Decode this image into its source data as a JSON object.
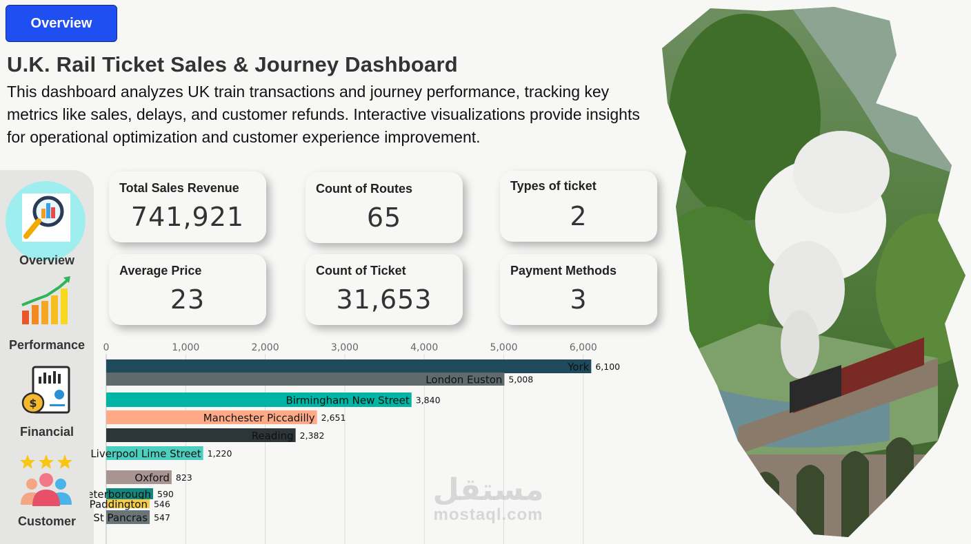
{
  "header": {
    "button_label": "Overview",
    "title": "U.K. Rail Ticket Sales & Journey Dashboard",
    "description": "This dashboard analyzes UK train transactions and journey performance, tracking key metrics like sales, delays, and customer refunds. Interactive visualizations provide insights for operational optimization and customer experience improvement."
  },
  "sidebar": {
    "items": [
      {
        "label": "Overview",
        "icon": "magnifier-chart-icon"
      },
      {
        "label": "Performance",
        "icon": "growth-chart-icon"
      },
      {
        "label": "Financial",
        "icon": "money-report-icon"
      },
      {
        "label": "Customer",
        "icon": "customer-rating-icon"
      }
    ]
  },
  "kpis": [
    {
      "label": "Total Sales Revenue",
      "value": "741,921"
    },
    {
      "label": "Count of Routes",
      "value": "65"
    },
    {
      "label": "Types of ticket",
      "value": "2"
    },
    {
      "label": "Average Price",
      "value": "23"
    },
    {
      "label": "Count of Ticket",
      "value": "31,653"
    },
    {
      "label": "Payment Methods",
      "value": "3"
    }
  ],
  "chart_data": {
    "type": "bar",
    "orientation": "horizontal",
    "xlim": [
      0,
      6300
    ],
    "xticks": [
      "0",
      "1,000",
      "2,000",
      "3,000",
      "4,000",
      "5,000",
      "6,000"
    ],
    "grid": true,
    "bars": [
      {
        "label": "York",
        "value": 6100,
        "value_label": "6,100",
        "color": "#1f4a5c"
      },
      {
        "label": "London Euston",
        "value": 5008,
        "value_label": "5,008",
        "color": "#5e6a6c"
      },
      {
        "label": "Birmingham New Street",
        "value": 3840,
        "value_label": "3,840",
        "color": "#00b5a3"
      },
      {
        "label": "Manchester Piccadilly",
        "value": 2651,
        "value_label": "2,651",
        "color": "#ffaa86"
      },
      {
        "label": "Reading",
        "value": 2382,
        "value_label": "2,382",
        "color": "#2c3537"
      },
      {
        "label": "Liverpool Lime Street",
        "value": 1220,
        "value_label": "1,220",
        "color": "#4ccfbf"
      },
      {
        "label": "Oxford",
        "value": 823,
        "value_label": "823",
        "color": "#a89592"
      },
      {
        "label": "Peterborough",
        "value": 590,
        "value_label": "590",
        "color": "#13877e"
      },
      {
        "label": "Paddington",
        "value": 546,
        "value_label": "546",
        "color": "#f5cb4a"
      },
      {
        "label": "St Pancras",
        "value": 547,
        "value_label": "547",
        "color": "#6a7577"
      }
    ]
  },
  "watermark": {
    "arabic": "مستقل",
    "latin": "mostaql.com"
  }
}
